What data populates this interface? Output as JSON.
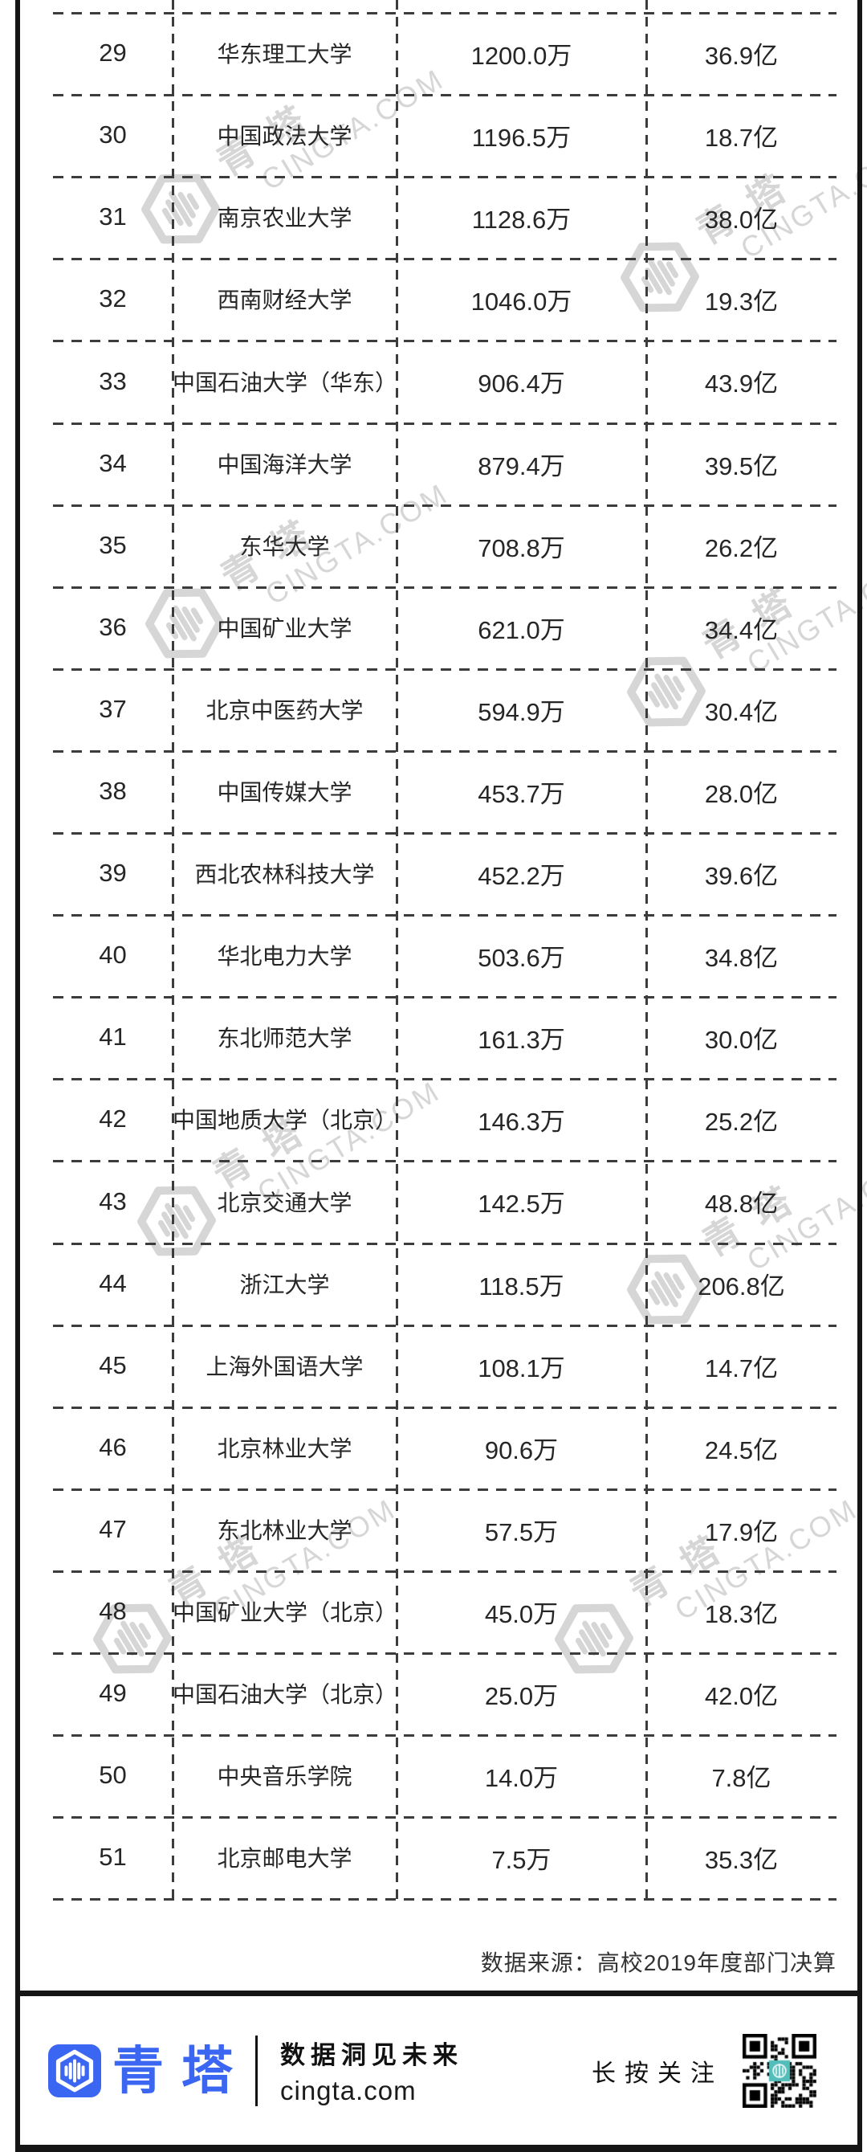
{
  "table": {
    "rows": [
      {
        "rank": "29",
        "university": "华东理工大学",
        "amount_wan": "1200.0万",
        "amount_yi": "36.9亿"
      },
      {
        "rank": "30",
        "university": "中国政法大学",
        "amount_wan": "1196.5万",
        "amount_yi": "18.7亿"
      },
      {
        "rank": "31",
        "university": "南京农业大学",
        "amount_wan": "1128.6万",
        "amount_yi": "38.0亿"
      },
      {
        "rank": "32",
        "university": "西南财经大学",
        "amount_wan": "1046.0万",
        "amount_yi": "19.3亿"
      },
      {
        "rank": "33",
        "university": "中国石油大学（华东）",
        "amount_wan": "906.4万",
        "amount_yi": "43.9亿"
      },
      {
        "rank": "34",
        "university": "中国海洋大学",
        "amount_wan": "879.4万",
        "amount_yi": "39.5亿"
      },
      {
        "rank": "35",
        "university": "东华大学",
        "amount_wan": "708.8万",
        "amount_yi": "26.2亿"
      },
      {
        "rank": "36",
        "university": "中国矿业大学",
        "amount_wan": "621.0万",
        "amount_yi": "34.4亿"
      },
      {
        "rank": "37",
        "university": "北京中医药大学",
        "amount_wan": "594.9万",
        "amount_yi": "30.4亿"
      },
      {
        "rank": "38",
        "university": "中国传媒大学",
        "amount_wan": "453.7万",
        "amount_yi": "28.0亿"
      },
      {
        "rank": "39",
        "university": "西北农林科技大学",
        "amount_wan": "452.2万",
        "amount_yi": "39.6亿"
      },
      {
        "rank": "40",
        "university": "华北电力大学",
        "amount_wan": "503.6万",
        "amount_yi": "34.8亿"
      },
      {
        "rank": "41",
        "university": "东北师范大学",
        "amount_wan": "161.3万",
        "amount_yi": "30.0亿"
      },
      {
        "rank": "42",
        "university": "中国地质大学（北京）",
        "amount_wan": "146.3万",
        "amount_yi": "25.2亿"
      },
      {
        "rank": "43",
        "university": "北京交通大学",
        "amount_wan": "142.5万",
        "amount_yi": "48.8亿"
      },
      {
        "rank": "44",
        "university": "浙江大学",
        "amount_wan": "118.5万",
        "amount_yi": "206.8亿"
      },
      {
        "rank": "45",
        "university": "上海外国语大学",
        "amount_wan": "108.1万",
        "amount_yi": "14.7亿"
      },
      {
        "rank": "46",
        "university": "北京林业大学",
        "amount_wan": "90.6万",
        "amount_yi": "24.5亿"
      },
      {
        "rank": "47",
        "university": "东北林业大学",
        "amount_wan": "57.5万",
        "amount_yi": "17.9亿"
      },
      {
        "rank": "48",
        "university": "中国矿业大学（北京）",
        "amount_wan": "45.0万",
        "amount_yi": "18.3亿"
      },
      {
        "rank": "49",
        "university": "中国石油大学（北京）",
        "amount_wan": "25.0万",
        "amount_yi": "42.0亿"
      },
      {
        "rank": "50",
        "university": "中央音乐学院",
        "amount_wan": "14.0万",
        "amount_yi": "7.8亿"
      },
      {
        "rank": "51",
        "university": "北京邮电大学",
        "amount_wan": "7.5万",
        "amount_yi": "35.3亿"
      }
    ]
  },
  "source_note": "数据来源：高校2019年度部门决算",
  "footer": {
    "brand": "青塔",
    "slogan": "数据洞见未来",
    "website": "cingta.com",
    "follow_hint": "长按关注"
  },
  "watermark": {
    "brand": "青塔",
    "domain": "CINGTA.COM"
  },
  "colors": {
    "brand_blue": "#3a66f2",
    "qr_center_teal": "#52bdb9",
    "frame_black": "#151515",
    "dash_gray": "#3c3c3c",
    "text_dark": "#262626",
    "watermark_gray": "#d6d6d6"
  }
}
